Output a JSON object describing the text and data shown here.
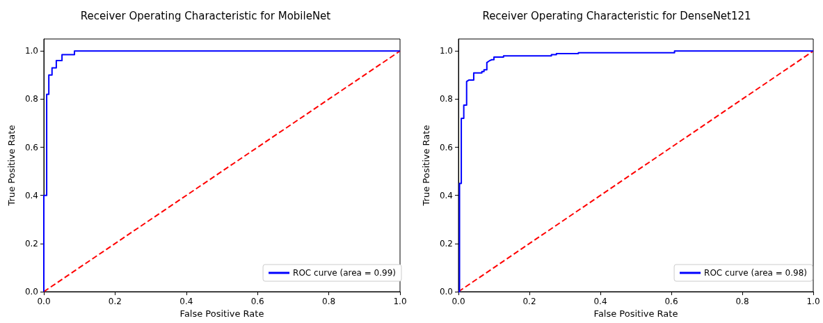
{
  "chart_data": [
    {
      "type": "line",
      "title": "Receiver Operating Characteristic for MobileNet",
      "xlabel": "False Positive Rate",
      "ylabel": "True Positive Rate",
      "xlim": [
        0,
        1
      ],
      "ylim": [
        0,
        1.05
      ],
      "xticks": [
        {
          "value": 0,
          "label": "0.0"
        },
        {
          "value": 0.2,
          "label": "0.2"
        },
        {
          "value": 0.4,
          "label": "0.4"
        },
        {
          "value": 0.6,
          "label": "0.6"
        },
        {
          "value": 0.8,
          "label": "0.8"
        },
        {
          "value": 1,
          "label": "1.0"
        }
      ],
      "yticks": [
        {
          "value": 0,
          "label": "0.0"
        },
        {
          "value": 0.2,
          "label": "0.2"
        },
        {
          "value": 0.4,
          "label": "0.4"
        },
        {
          "value": 0.6,
          "label": "0.6"
        },
        {
          "value": 0.8,
          "label": "0.8"
        },
        {
          "value": 1,
          "label": "1.0"
        }
      ],
      "grid": false,
      "legend": "bottom right",
      "marker": "none",
      "series": [
        {
          "name": "ROC curve (area = 0.99)",
          "color": "#0000ff",
          "line_style": "solid",
          "x": [
            0,
            0,
            0.008,
            0.008,
            0.014,
            0.014,
            0.023,
            0.023,
            0.035,
            0.035,
            0.051,
            0.051,
            0.086,
            0.086,
            1
          ],
          "values": [
            0,
            0.4,
            0.4,
            0.82,
            0.82,
            0.9,
            0.9,
            0.93,
            0.93,
            0.96,
            0.96,
            0.985,
            0.985,
            1,
            1
          ]
        },
        {
          "color": "#ff0000",
          "line_style": "dashed",
          "x": [
            0,
            1
          ],
          "values": [
            0,
            1
          ]
        }
      ]
    },
    {
      "type": "line",
      "title": "Receiver Operating Characteristic for DenseNet121",
      "xlabel": "False Positive Rate",
      "ylabel": "True Positive Rate",
      "xlim": [
        0,
        1
      ],
      "ylim": [
        0,
        1.05
      ],
      "xticks": [
        {
          "value": 0,
          "label": "0.0"
        },
        {
          "value": 0.2,
          "label": "0.2"
        },
        {
          "value": 0.4,
          "label": "0.4"
        },
        {
          "value": 0.6,
          "label": "0.6"
        },
        {
          "value": 0.8,
          "label": "0.8"
        },
        {
          "value": 1,
          "label": "1.0"
        }
      ],
      "yticks": [
        {
          "value": 0,
          "label": "0.0"
        },
        {
          "value": 0.2,
          "label": "0.2"
        },
        {
          "value": 0.4,
          "label": "0.4"
        },
        {
          "value": 0.6,
          "label": "0.6"
        },
        {
          "value": 0.8,
          "label": "0.8"
        },
        {
          "value": 1,
          "label": "1.0"
        }
      ],
      "grid": false,
      "legend": "bottom right",
      "marker": "none",
      "series": [
        {
          "name": "ROC curve (area = 0.98)",
          "color": "#0000ff",
          "line_style": "solid",
          "x": [
            0,
            0.003,
            0.003,
            0.008,
            0.008,
            0.015,
            0.015,
            0.023,
            0.023,
            0.029,
            0.043,
            0.043,
            0.066,
            0.066,
            0.072,
            0.072,
            0.08,
            0.08,
            0.087,
            0.094,
            0.1,
            0.1,
            0.127,
            0.127,
            0.262,
            0.262,
            0.276,
            0.276,
            0.338,
            0.338,
            0.609,
            0.609,
            1
          ],
          "values": [
            0,
            0,
            0.45,
            0.45,
            0.72,
            0.72,
            0.775,
            0.775,
            0.873,
            0.879,
            0.879,
            0.909,
            0.909,
            0.915,
            0.915,
            0.922,
            0.922,
            0.952,
            0.959,
            0.964,
            0.964,
            0.975,
            0.975,
            0.98,
            0.98,
            0.985,
            0.985,
            0.989,
            0.989,
            0.993,
            0.993,
            1,
            1
          ]
        },
        {
          "color": "#ff0000",
          "line_style": "dashed",
          "x": [
            0,
            1
          ],
          "values": [
            0,
            1
          ]
        }
      ]
    }
  ]
}
